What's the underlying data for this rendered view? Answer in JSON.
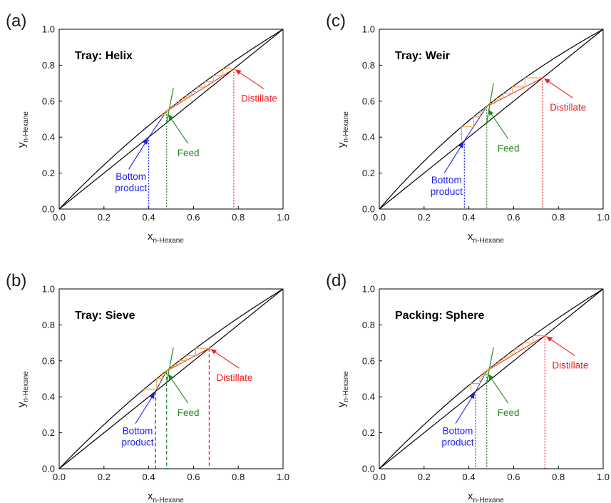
{
  "colors": {
    "curve": "#000000",
    "stairs": "#e8a33d",
    "feed": "#1f8a1f",
    "bottom": "#1d1df2",
    "distillate": "#f21d1d",
    "text": "#1a1a1a"
  },
  "chart_data": [
    {
      "type": "line",
      "panel": "(a)",
      "title": "Tray: Helix",
      "xlabel_main": "x",
      "xlabel_sub": "n-Hexane",
      "ylabel_main": "y",
      "ylabel_sub": "n-Hexane",
      "xlim": [
        0,
        1
      ],
      "ylim": [
        0,
        1
      ],
      "xticks": [
        "0.0",
        "0.2",
        "0.4",
        "0.6",
        "0.8",
        "1.0"
      ],
      "yticks": [
        "0.0",
        "0.2",
        "0.4",
        "0.6",
        "0.8",
        "1.0"
      ],
      "alpha": 1.3,
      "x_bottom": 0.4,
      "x_feed": 0.48,
      "x_distillate": 0.78,
      "distillate_line_style": "dotted",
      "annotations": {
        "distillate": "Distillate",
        "feed": "Feed",
        "bottom": [
          "Bottom",
          "product"
        ]
      }
    },
    {
      "type": "line",
      "panel": "(c)",
      "title": "Tray: Weir",
      "xlabel_main": "x",
      "xlabel_sub": "n-Hexane",
      "ylabel_main": "y",
      "ylabel_sub": "n-Hexane",
      "xlim": [
        0,
        1
      ],
      "ylim": [
        0,
        1
      ],
      "xticks": [
        "0.0",
        "0.2",
        "0.4",
        "0.6",
        "0.8",
        "1.0"
      ],
      "yticks": [
        "0.0",
        "0.2",
        "0.4",
        "0.6",
        "0.8",
        "1.0"
      ],
      "alpha": 1.45,
      "x_bottom": 0.38,
      "x_feed": 0.48,
      "x_distillate": 0.73,
      "distillate_line_style": "dotted",
      "annotations": {
        "distillate": "Distillate",
        "feed": "Feed",
        "bottom": [
          "Bottom",
          "product"
        ]
      }
    },
    {
      "type": "line",
      "panel": "(b)",
      "title": "Tray: Sieve",
      "xlabel_main": "x",
      "xlabel_sub": "n-Hexane",
      "ylabel_main": "y",
      "ylabel_sub": "n-Hexane",
      "xlim": [
        0,
        1
      ],
      "ylim": [
        0,
        1
      ],
      "xticks": [
        "0.0",
        "0.2",
        "0.4",
        "0.6",
        "0.8",
        "1.0"
      ],
      "yticks": [
        "0.0",
        "0.2",
        "0.4",
        "0.6",
        "0.8",
        "1.0"
      ],
      "alpha": 1.3,
      "x_bottom": 0.43,
      "x_feed": 0.48,
      "x_distillate": 0.67,
      "distillate_line_style": "dashed",
      "annotations": {
        "distillate": "Distillate",
        "feed": "Feed",
        "bottom": [
          "Bottom",
          "product"
        ]
      }
    },
    {
      "type": "line",
      "panel": "(d)",
      "title": "Packing: Sphere",
      "xlabel_main": "x",
      "xlabel_sub": "n-Hexane",
      "ylabel_main": "y",
      "ylabel_sub": "n-Hexane",
      "xlim": [
        0,
        1
      ],
      "ylim": [
        0,
        1
      ],
      "xticks": [
        "0.0",
        "0.2",
        "0.4",
        "0.6",
        "0.8",
        "1.0"
      ],
      "yticks": [
        "0.0",
        "0.2",
        "0.4",
        "0.6",
        "0.8",
        "1.0"
      ],
      "alpha": 1.3,
      "x_bottom": 0.43,
      "x_feed": 0.48,
      "x_distillate": 0.74,
      "distillate_line_style": "dotted",
      "annotations": {
        "distillate": "Distillate",
        "feed": "Feed",
        "bottom": [
          "Bottom",
          "product"
        ]
      }
    }
  ]
}
